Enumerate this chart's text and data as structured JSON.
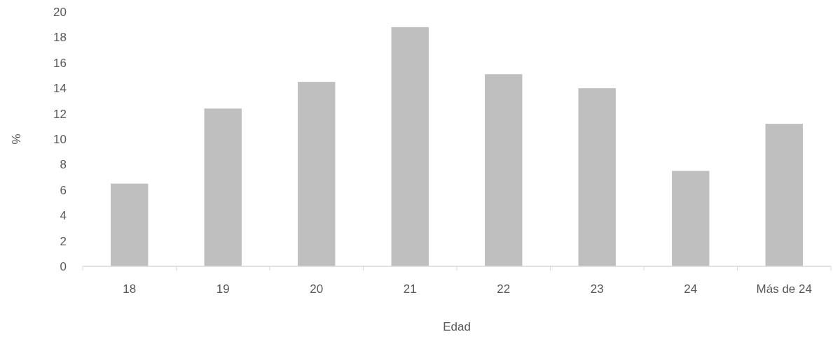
{
  "chart_data": {
    "type": "bar",
    "xlabel": "Edad",
    "ylabel": "%",
    "categories": [
      "18",
      "19",
      "20",
      "21",
      "22",
      "23",
      "24",
      "Más de 24"
    ],
    "values": [
      6.5,
      12.4,
      14.5,
      18.8,
      15.1,
      14.0,
      7.5,
      11.2
    ],
    "color": "#bfbfbf",
    "ylim": [
      0,
      20
    ],
    "yticks": [
      0,
      2,
      4,
      6,
      8,
      10,
      12,
      14,
      16,
      18,
      20
    ],
    "grid": false
  }
}
